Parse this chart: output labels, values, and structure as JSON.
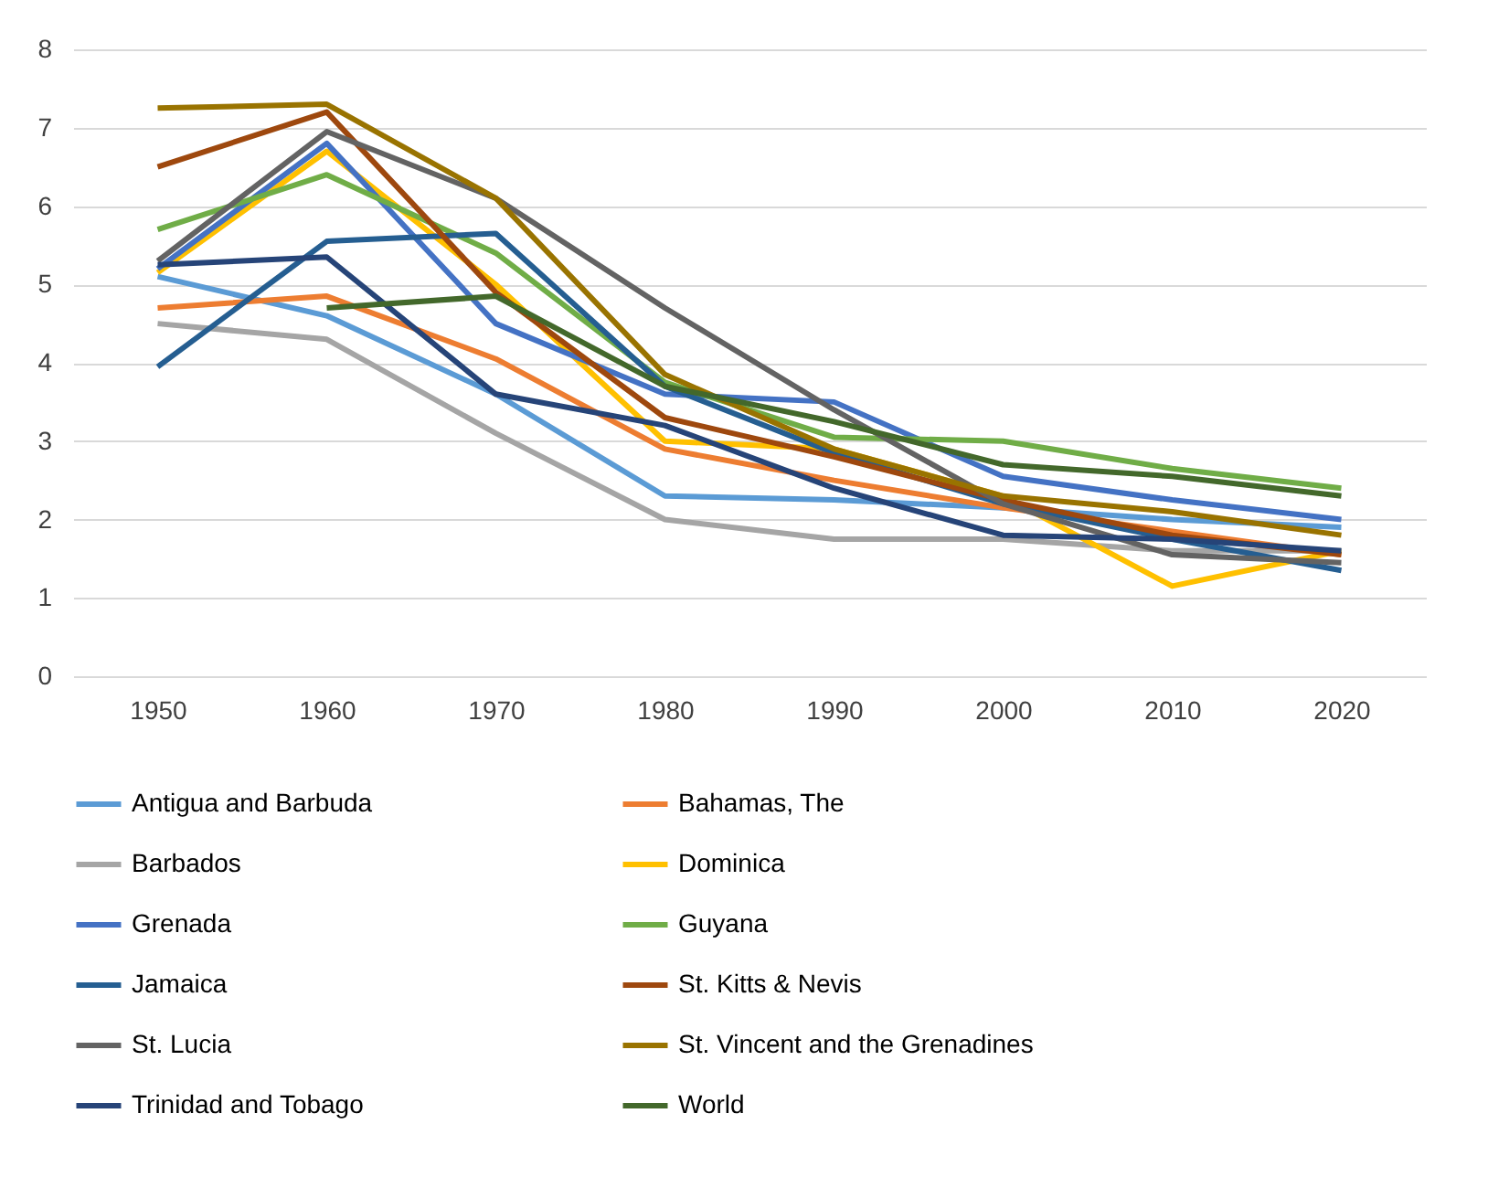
{
  "chart_data": {
    "type": "line",
    "categories": [
      "1950",
      "1960",
      "1970",
      "1980",
      "1990",
      "2000",
      "2010",
      "2020"
    ],
    "ylim": [
      0,
      8
    ],
    "yticks": [
      0,
      1,
      2,
      3,
      4,
      5,
      6,
      7,
      8
    ],
    "grid": "y",
    "legend": "bottom",
    "line_style": "solid",
    "marker": "none",
    "series": [
      {
        "name": "Antigua and Barbuda",
        "color": "#5b9bd5",
        "values": [
          5.1,
          4.6,
          3.6,
          2.3,
          2.25,
          2.15,
          2.0,
          1.9
        ]
      },
      {
        "name": "Bahamas, The",
        "color": "#ed7d31",
        "values": [
          4.7,
          4.85,
          4.05,
          2.9,
          2.5,
          2.15,
          1.85,
          1.55
        ]
      },
      {
        "name": "Barbados",
        "color": "#a5a5a5",
        "values": [
          4.5,
          4.3,
          3.1,
          2.0,
          1.75,
          1.75,
          1.6,
          1.6
        ]
      },
      {
        "name": "Dominica",
        "color": "#ffc000",
        "values": [
          5.15,
          6.7,
          5.0,
          3.0,
          2.9,
          2.3,
          1.15,
          1.6
        ]
      },
      {
        "name": "Grenada",
        "color": "#4472c4",
        "values": [
          5.2,
          6.8,
          4.5,
          3.6,
          3.5,
          2.55,
          2.25,
          2.0
        ]
      },
      {
        "name": "Guyana",
        "color": "#70ad47",
        "values": [
          5.7,
          6.4,
          5.4,
          3.75,
          3.05,
          3.0,
          2.65,
          2.4
        ]
      },
      {
        "name": "Jamaica",
        "color": "#255e91",
        "values": [
          3.95,
          5.55,
          5.65,
          3.7,
          2.85,
          2.2,
          1.75,
          1.35
        ]
      },
      {
        "name": "St. Kitts & Nevis",
        "color": "#9e480e",
        "values": [
          6.5,
          7.2,
          4.9,
          3.3,
          2.8,
          2.25,
          1.8,
          1.55
        ]
      },
      {
        "name": "St. Lucia",
        "color": "#636363",
        "values": [
          5.3,
          6.95,
          6.1,
          4.7,
          3.4,
          2.2,
          1.55,
          1.45
        ]
      },
      {
        "name": "St. Vincent and the Grenadines",
        "color": "#997300",
        "values": [
          7.25,
          7.3,
          6.1,
          3.85,
          2.9,
          2.3,
          2.1,
          1.8
        ]
      },
      {
        "name": "Trinidad and Tobago",
        "color": "#264478",
        "values": [
          5.25,
          5.35,
          3.6,
          3.2,
          2.4,
          1.8,
          1.75,
          1.6
        ]
      },
      {
        "name": "World",
        "color": "#43682b",
        "values": [
          null,
          4.7,
          4.85,
          3.7,
          3.25,
          2.7,
          2.55,
          2.3
        ]
      }
    ]
  }
}
